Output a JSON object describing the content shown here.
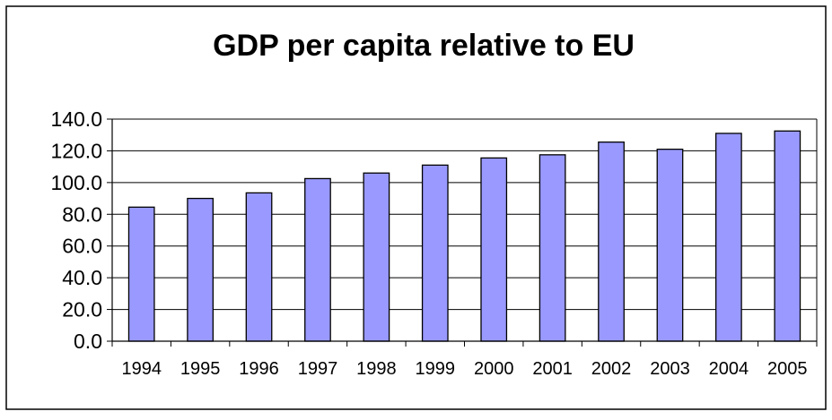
{
  "chart_data": {
    "type": "bar",
    "title": "GDP per capita relative to EU",
    "categories": [
      "1994",
      "1995",
      "1996",
      "1997",
      "1998",
      "1999",
      "2000",
      "2001",
      "2002",
      "2003",
      "2004",
      "2005"
    ],
    "values": [
      84.5,
      90.0,
      93.5,
      102.5,
      106.0,
      111.0,
      115.5,
      117.5,
      125.5,
      121.0,
      131.0,
      132.5
    ],
    "ylim": [
      0,
      140
    ],
    "yticks": [
      "0.0",
      "20.0",
      "40.0",
      "60.0",
      "80.0",
      "100.0",
      "120.0",
      "140.0"
    ],
    "xlabel": "",
    "ylabel": "",
    "grid": true,
    "legend": "none",
    "bar_color": "#9999ff",
    "border_color": "#000000"
  }
}
